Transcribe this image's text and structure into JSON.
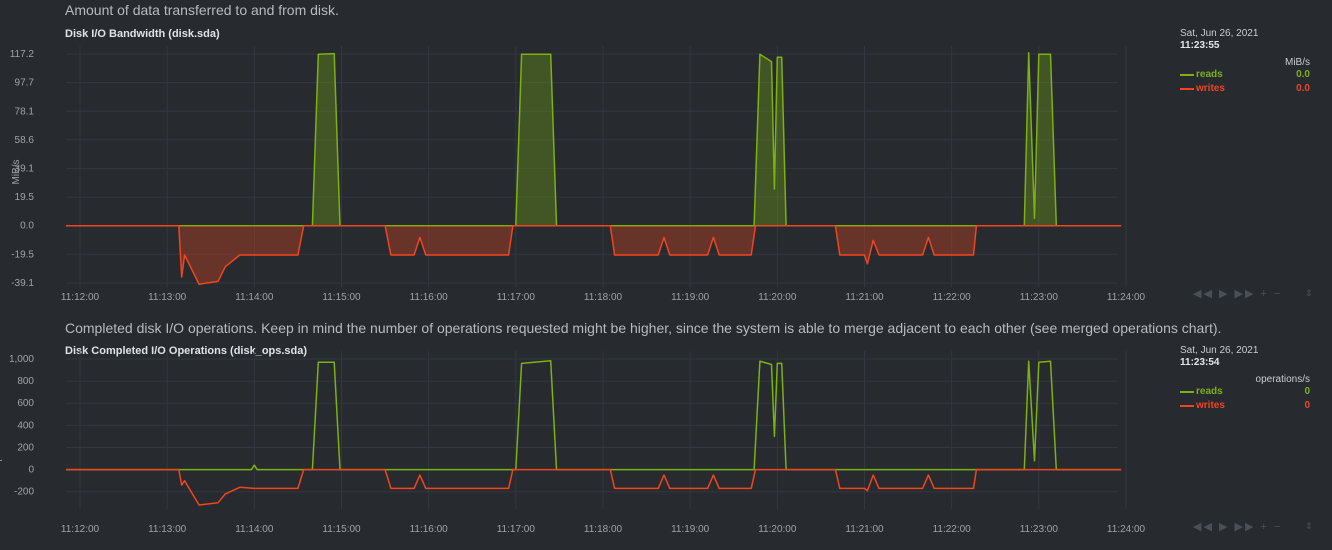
{
  "colors": {
    "reads": "#7cb10f",
    "writes": "#f2441d",
    "bg": "#272b30"
  },
  "charts": [
    {
      "description": "Amount of data transferred to and from disk.",
      "title": "Disk I/O Bandwidth (disk.sda)",
      "ylabel": "MiB/s",
      "ytick_labels": [
        "117.2",
        "97.7",
        "78.1",
        "58.6",
        "39.1",
        "19.5",
        "0.0",
        "-19.5",
        "-39.1"
      ],
      "ytick_values": [
        117.2,
        97.7,
        78.1,
        58.6,
        39.1,
        19.5,
        0,
        -19.5,
        -39.1
      ],
      "xtick_labels": [
        "11:12:00",
        "11:13:00",
        "11:14:00",
        "11:15:00",
        "11:16:00",
        "11:17:00",
        "11:18:00",
        "11:19:00",
        "11:20:00",
        "11:21:00",
        "11:22:00",
        "11:23:00",
        "11:24:00"
      ],
      "legend": {
        "date": "Sat, Jun 26, 2021",
        "time": "11:23:55",
        "units": "MiB/s",
        "series": [
          {
            "name": "reads",
            "value": "0.0"
          },
          {
            "name": "writes",
            "value": "0.0"
          }
        ]
      }
    },
    {
      "description": "Completed disk I/O operations. Keep in mind the number of operations requested might be higher, since the system is able to merge adjacent to each other (see merged operations chart).",
      "title": "Disk Completed I/O Operations (disk_ops.sda)",
      "ylabel": "operations/s",
      "ytick_labels": [
        "1,000",
        "800",
        "600",
        "400",
        "200",
        "0",
        "-200"
      ],
      "ytick_values": [
        1000,
        800,
        600,
        400,
        200,
        0,
        -200
      ],
      "xtick_labels": [
        "11:12:00",
        "11:13:00",
        "11:14:00",
        "11:15:00",
        "11:16:00",
        "11:17:00",
        "11:18:00",
        "11:19:00",
        "11:20:00",
        "11:21:00",
        "11:22:00",
        "11:23:00",
        "11:24:00"
      ],
      "legend": {
        "date": "Sat, Jun 26, 2021",
        "time": "11:23:54",
        "units": "operations/s",
        "series": [
          {
            "name": "reads",
            "value": "0"
          },
          {
            "name": "writes",
            "value": "0"
          }
        ]
      }
    }
  ],
  "toolbox": {
    "buttons": [
      "◀◀",
      "▶",
      "▶▶",
      "+",
      "−"
    ],
    "resize": "⇕"
  },
  "chart_data": [
    {
      "type": "area",
      "title": "Disk I/O Bandwidth (disk.sda)",
      "ylabel": "MiB/s",
      "ylim": [
        -39.1,
        117.2
      ],
      "x_range": [
        "11:12:00",
        "11:24:00"
      ],
      "series": [
        {
          "name": "reads",
          "values": [
            [
              "11:14:40",
              0
            ],
            [
              "11:14:44",
              117
            ],
            [
              "11:14:55",
              117.5
            ],
            [
              "11:14:59",
              0
            ],
            [
              "11:17:00",
              0
            ],
            [
              "11:17:04",
              117
            ],
            [
              "11:17:24",
              117
            ],
            [
              "11:17:28",
              0
            ],
            [
              "11:19:44",
              0
            ],
            [
              "11:19:48",
              117
            ],
            [
              "11:19:56",
              112
            ],
            [
              "11:19:58",
              25
            ],
            [
              "11:20:00",
              115
            ],
            [
              "11:20:03",
              115
            ],
            [
              "11:20:06",
              0
            ],
            [
              "11:22:50",
              0
            ],
            [
              "11:22:53",
              118
            ],
            [
              "11:22:57",
              5
            ],
            [
              "11:23:00",
              117
            ],
            [
              "11:23:08",
              117
            ],
            [
              "11:23:12",
              0
            ]
          ]
        },
        {
          "name": "writes",
          "values": [
            [
              "11:13:08",
              0
            ],
            [
              "11:13:10",
              -35
            ],
            [
              "11:13:12",
              -20
            ],
            [
              "11:13:22",
              -40
            ],
            [
              "11:13:35",
              -38
            ],
            [
              "11:13:40",
              -28
            ],
            [
              "11:13:50",
              -20
            ],
            [
              "11:14:00",
              -20
            ],
            [
              "11:14:30",
              -20
            ],
            [
              "11:14:34",
              0
            ],
            [
              "11:15:30",
              0
            ],
            [
              "11:15:34",
              -20
            ],
            [
              "11:15:50",
              -20
            ],
            [
              "11:15:54",
              -8
            ],
            [
              "11:15:58",
              -20
            ],
            [
              "11:16:55",
              -20
            ],
            [
              "11:16:58",
              0
            ],
            [
              "11:18:05",
              0
            ],
            [
              "11:18:08",
              -20
            ],
            [
              "11:18:38",
              -20
            ],
            [
              "11:18:42",
              -8
            ],
            [
              "11:18:46",
              -20
            ],
            [
              "11:19:12",
              -20
            ],
            [
              "11:19:16",
              -8
            ],
            [
              "11:19:20",
              -20
            ],
            [
              "11:19:42",
              -20
            ],
            [
              "11:19:45",
              0
            ],
            [
              "11:20:40",
              0
            ],
            [
              "11:20:43",
              -20
            ],
            [
              "11:21:00",
              -20
            ],
            [
              "11:21:02",
              -26
            ],
            [
              "11:21:06",
              -10
            ],
            [
              "11:21:10",
              -20
            ],
            [
              "11:21:40",
              -20
            ],
            [
              "11:21:44",
              -8
            ],
            [
              "11:21:48",
              -20
            ],
            [
              "11:22:15",
              -20
            ],
            [
              "11:22:17",
              0
            ]
          ]
        }
      ]
    },
    {
      "type": "line",
      "title": "Disk Completed I/O Operations (disk_ops.sda)",
      "ylabel": "operations/s",
      "ylim": [
        -320,
        1000
      ],
      "x_range": [
        "11:12:00",
        "11:24:00"
      ],
      "series": [
        {
          "name": "reads",
          "values": [
            [
              "11:13:58",
              0
            ],
            [
              "11:14:00",
              40
            ],
            [
              "11:14:02",
              0
            ],
            [
              "11:14:40",
              0
            ],
            [
              "11:14:44",
              970
            ],
            [
              "11:14:55",
              970
            ],
            [
              "11:14:59",
              0
            ],
            [
              "11:17:00",
              0
            ],
            [
              "11:17:04",
              960
            ],
            [
              "11:17:24",
              985
            ],
            [
              "11:17:28",
              0
            ],
            [
              "11:19:44",
              0
            ],
            [
              "11:19:48",
              980
            ],
            [
              "11:19:56",
              950
            ],
            [
              "11:19:58",
              300
            ],
            [
              "11:20:00",
              960
            ],
            [
              "11:20:03",
              960
            ],
            [
              "11:20:06",
              0
            ],
            [
              "11:22:50",
              0
            ],
            [
              "11:22:53",
              980
            ],
            [
              "11:22:57",
              80
            ],
            [
              "11:23:00",
              970
            ],
            [
              "11:23:08",
              980
            ],
            [
              "11:23:12",
              0
            ]
          ]
        },
        {
          "name": "writes",
          "values": [
            [
              "11:13:08",
              0
            ],
            [
              "11:13:10",
              -140
            ],
            [
              "11:13:12",
              -100
            ],
            [
              "11:13:22",
              -320
            ],
            [
              "11:13:35",
              -300
            ],
            [
              "11:13:40",
              -220
            ],
            [
              "11:13:50",
              -160
            ],
            [
              "11:14:00",
              -170
            ],
            [
              "11:14:30",
              -170
            ],
            [
              "11:14:34",
              0
            ],
            [
              "11:15:30",
              0
            ],
            [
              "11:15:34",
              -170
            ],
            [
              "11:15:50",
              -170
            ],
            [
              "11:15:54",
              -50
            ],
            [
              "11:15:58",
              -170
            ],
            [
              "11:16:55",
              -170
            ],
            [
              "11:16:58",
              0
            ],
            [
              "11:18:05",
              0
            ],
            [
              "11:18:08",
              -170
            ],
            [
              "11:18:38",
              -170
            ],
            [
              "11:18:42",
              -50
            ],
            [
              "11:18:46",
              -170
            ],
            [
              "11:19:12",
              -170
            ],
            [
              "11:19:16",
              -50
            ],
            [
              "11:19:20",
              -170
            ],
            [
              "11:19:42",
              -170
            ],
            [
              "11:19:45",
              0
            ],
            [
              "11:20:40",
              0
            ],
            [
              "11:20:43",
              -170
            ],
            [
              "11:21:00",
              -170
            ],
            [
              "11:21:02",
              -190
            ],
            [
              "11:21:06",
              -50
            ],
            [
              "11:21:10",
              -170
            ],
            [
              "11:21:40",
              -170
            ],
            [
              "11:21:44",
              -50
            ],
            [
              "11:21:48",
              -170
            ],
            [
              "11:22:15",
              -170
            ],
            [
              "11:22:17",
              0
            ]
          ]
        }
      ]
    }
  ]
}
